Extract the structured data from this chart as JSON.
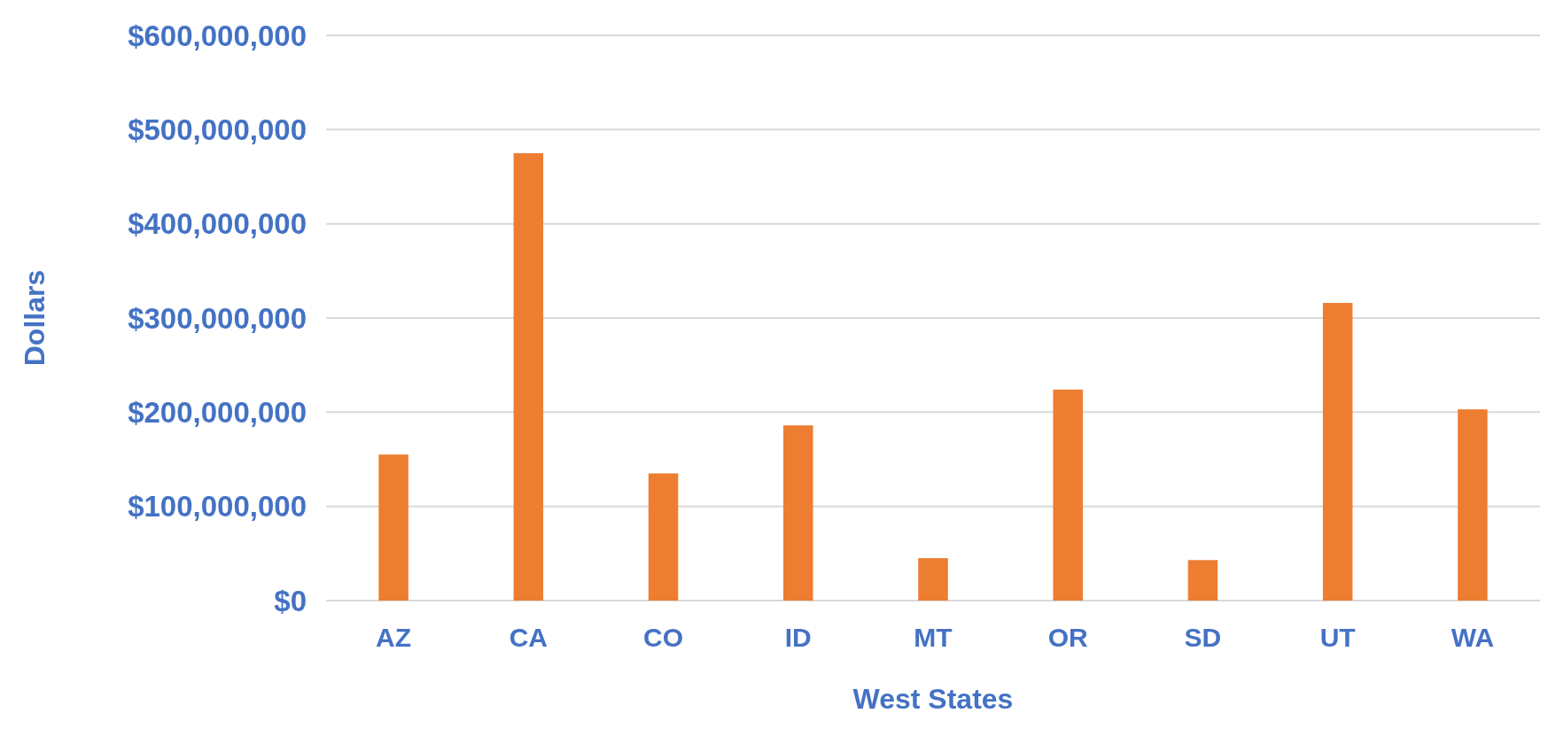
{
  "chart_data": {
    "type": "bar",
    "xlabel": "West States",
    "ylabel": "Dollars",
    "categories": [
      "AZ",
      "CA",
      "CO",
      "ID",
      "MT",
      "OR",
      "SD",
      "UT",
      "WA"
    ],
    "values": [
      155000000,
      475000000,
      135000000,
      186000000,
      45000000,
      224000000,
      43000000,
      316000000,
      203000000
    ],
    "color": "#ed7d31",
    "ylim": [
      0,
      600000000
    ],
    "yticks": [
      {
        "value": 0,
        "label": "$0"
      },
      {
        "value": 100000000,
        "label": "$100,000,000"
      },
      {
        "value": 200000000,
        "label": "$200,000,000"
      },
      {
        "value": 300000000,
        "label": "$300,000,000"
      },
      {
        "value": 400000000,
        "label": "$400,000,000"
      },
      {
        "value": 500000000,
        "label": "$500,000,000"
      },
      {
        "value": 600000000,
        "label": "$600,000,000"
      }
    ],
    "grid": true,
    "legend": false
  }
}
